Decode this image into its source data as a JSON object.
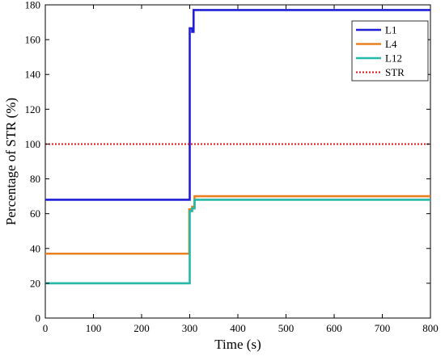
{
  "chart_data": {
    "type": "line",
    "xlabel": "Time (s)",
    "ylabel": "Percentage of STR (%)",
    "xlim": [
      0,
      800
    ],
    "ylim": [
      0,
      180
    ],
    "xticks": [
      0,
      100,
      200,
      300,
      400,
      500,
      600,
      700,
      800
    ],
    "yticks": [
      0,
      20,
      40,
      60,
      80,
      100,
      120,
      140,
      160,
      180
    ],
    "grid": false,
    "legend_position": "top-right",
    "series": [
      {
        "name": "L1",
        "color": "#1f1fd6",
        "style": "solid",
        "points": [
          [
            0,
            68
          ],
          [
            298,
            68
          ],
          [
            300,
            68
          ],
          [
            300,
            166.5
          ],
          [
            305,
            166.5
          ],
          [
            305,
            164.5
          ],
          [
            308,
            164.5
          ],
          [
            308,
            177
          ],
          [
            310,
            177
          ],
          [
            800,
            177
          ]
        ]
      },
      {
        "name": "L4",
        "color": "#e8801f",
        "style": "solid",
        "points": [
          [
            0,
            37
          ],
          [
            299,
            37
          ],
          [
            299,
            62.5
          ],
          [
            305,
            62.5
          ],
          [
            305,
            64
          ],
          [
            310,
            64
          ],
          [
            310,
            70
          ],
          [
            800,
            70
          ]
        ]
      },
      {
        "name": "L12",
        "color": "#23b8a8",
        "style": "solid",
        "points": [
          [
            0,
            20
          ],
          [
            300,
            20
          ],
          [
            300,
            61.5
          ],
          [
            305,
            61.5
          ],
          [
            305,
            63
          ],
          [
            310,
            63
          ],
          [
            310,
            68
          ],
          [
            800,
            68
          ]
        ]
      },
      {
        "name": "STR",
        "color": "#d9161c",
        "style": "dotted",
        "points": [
          [
            0,
            100
          ],
          [
            800,
            100
          ]
        ]
      }
    ]
  }
}
